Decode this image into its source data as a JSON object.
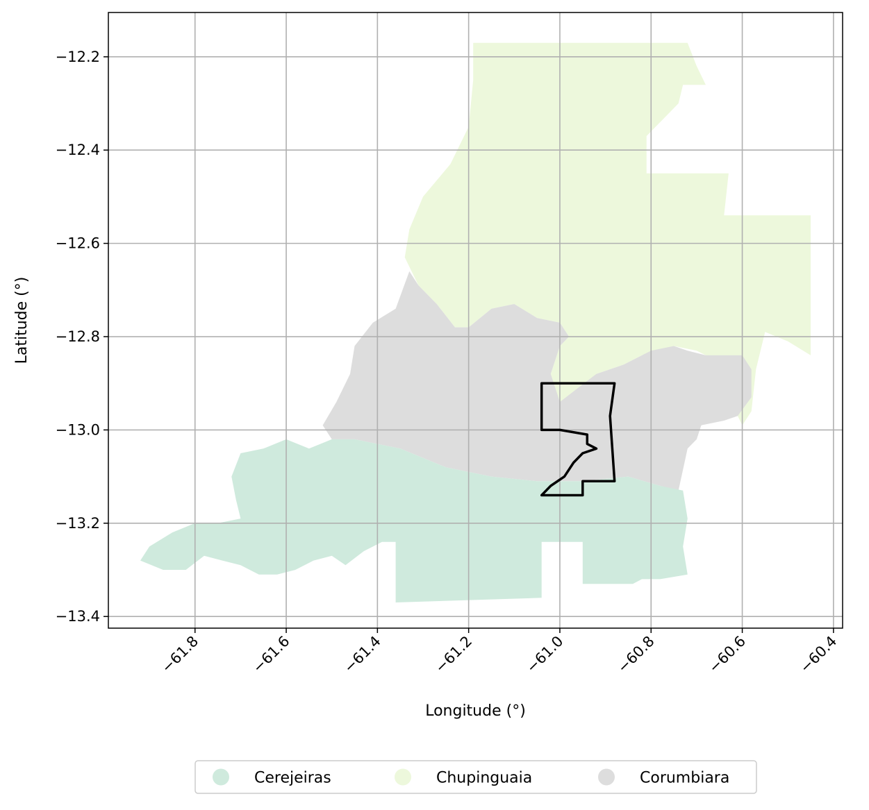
{
  "map": {
    "xlabel": "Longitude (°)",
    "ylabel": "Latitude (°)",
    "xlim": [
      -61.99,
      -60.38
    ],
    "ylim": [
      -13.425,
      -12.105
    ],
    "x_ticks": [
      {
        "value": -61.8,
        "label": "−61.8"
      },
      {
        "value": -61.6,
        "label": "−61.6"
      },
      {
        "value": -61.4,
        "label": "−61.4"
      },
      {
        "value": -61.2,
        "label": "−61.2"
      },
      {
        "value": -61.0,
        "label": "−61.0"
      },
      {
        "value": -60.8,
        "label": "−60.8"
      },
      {
        "value": -60.6,
        "label": "−60.6"
      },
      {
        "value": -60.4,
        "label": "−60.4"
      }
    ],
    "y_ticks": [
      {
        "value": -12.2,
        "label": "−12.2"
      },
      {
        "value": -12.4,
        "label": "−12.4"
      },
      {
        "value": -12.6,
        "label": "−12.6"
      },
      {
        "value": -12.8,
        "label": "−12.8"
      },
      {
        "value": -13.0,
        "label": "−13.0"
      },
      {
        "value": -13.2,
        "label": "−13.2"
      },
      {
        "value": -13.4,
        "label": "−13.4"
      }
    ],
    "grid": true,
    "legend_position": "bottom-center",
    "legend": [
      {
        "label": "Cerejeiras",
        "color": "#cfeadd"
      },
      {
        "label": "Chupinguaia",
        "color": "#edf8dc"
      },
      {
        "label": "Corumbiara",
        "color": "#dddddd"
      }
    ],
    "regions": [
      {
        "name": "Chupinguaia",
        "color": "#edf8dc",
        "coords": [
          [
            -61.19,
            -12.17
          ],
          [
            -60.98,
            -12.17
          ],
          [
            -60.75,
            -12.17
          ],
          [
            -60.72,
            -12.17
          ],
          [
            -60.7,
            -12.22
          ],
          [
            -60.68,
            -12.26
          ],
          [
            -60.73,
            -12.26
          ],
          [
            -60.74,
            -12.3
          ],
          [
            -60.77,
            -12.33
          ],
          [
            -60.79,
            -12.35
          ],
          [
            -60.81,
            -12.37
          ],
          [
            -60.81,
            -12.45
          ],
          [
            -60.63,
            -12.45
          ],
          [
            -60.64,
            -12.54
          ],
          [
            -60.45,
            -12.54
          ],
          [
            -60.45,
            -12.84
          ],
          [
            -60.5,
            -12.81
          ],
          [
            -60.55,
            -12.79
          ],
          [
            -60.57,
            -12.87
          ],
          [
            -60.58,
            -12.96
          ],
          [
            -60.6,
            -12.99
          ],
          [
            -60.61,
            -12.97
          ],
          [
            -60.63,
            -12.96
          ],
          [
            -60.65,
            -12.9
          ],
          [
            -60.66,
            -12.85
          ],
          [
            -60.7,
            -12.83
          ],
          [
            -60.75,
            -12.82
          ],
          [
            -60.78,
            -12.83
          ],
          [
            -60.82,
            -12.84
          ],
          [
            -60.86,
            -12.86
          ],
          [
            -60.92,
            -12.88
          ],
          [
            -60.94,
            -12.93
          ],
          [
            -60.97,
            -12.95
          ],
          [
            -61.0,
            -12.97
          ],
          [
            -61.02,
            -12.88
          ],
          [
            -61.0,
            -12.82
          ],
          [
            -60.98,
            -12.8
          ],
          [
            -61.0,
            -12.77
          ],
          [
            -61.05,
            -12.76
          ],
          [
            -61.1,
            -12.73
          ],
          [
            -61.15,
            -12.74
          ],
          [
            -61.2,
            -12.78
          ],
          [
            -61.23,
            -12.78
          ],
          [
            -61.27,
            -12.73
          ],
          [
            -61.31,
            -12.69
          ],
          [
            -61.34,
            -12.63
          ],
          [
            -61.33,
            -12.57
          ],
          [
            -61.3,
            -12.5
          ],
          [
            -61.24,
            -12.43
          ],
          [
            -61.2,
            -12.35
          ],
          [
            -61.19,
            -12.25
          ]
        ]
      },
      {
        "name": "Corumbiara",
        "color": "#dddddd",
        "coords": [
          [
            -61.36,
            -12.63
          ],
          [
            -61.33,
            -12.66
          ],
          [
            -61.36,
            -12.74
          ],
          [
            -61.41,
            -12.77
          ],
          [
            -61.45,
            -12.82
          ],
          [
            -61.46,
            -12.88
          ],
          [
            -61.49,
            -12.94
          ],
          [
            -61.52,
            -12.99
          ],
          [
            -61.5,
            -13.02
          ],
          [
            -61.45,
            -13.02
          ],
          [
            -61.35,
            -13.04
          ],
          [
            -61.25,
            -13.08
          ],
          [
            -61.15,
            -13.1
          ],
          [
            -61.05,
            -13.11
          ],
          [
            -60.95,
            -13.11
          ],
          [
            -60.85,
            -13.1
          ],
          [
            -60.78,
            -13.12
          ],
          [
            -60.74,
            -13.13
          ],
          [
            -60.72,
            -13.04
          ],
          [
            -60.7,
            -13.02
          ],
          [
            -60.69,
            -12.99
          ],
          [
            -60.64,
            -12.98
          ],
          [
            -60.61,
            -12.97
          ],
          [
            -60.58,
            -12.93
          ],
          [
            -60.58,
            -12.87
          ],
          [
            -60.6,
            -12.84
          ],
          [
            -60.64,
            -12.84
          ],
          [
            -60.68,
            -12.84
          ],
          [
            -60.72,
            -12.83
          ],
          [
            -60.75,
            -12.82
          ],
          [
            -60.8,
            -12.83
          ],
          [
            -60.86,
            -12.86
          ],
          [
            -60.92,
            -12.88
          ],
          [
            -60.96,
            -12.91
          ],
          [
            -61.0,
            -12.94
          ],
          [
            -61.02,
            -12.88
          ],
          [
            -61.0,
            -12.82
          ],
          [
            -60.98,
            -12.8
          ],
          [
            -61.0,
            -12.77
          ],
          [
            -61.05,
            -12.76
          ],
          [
            -61.1,
            -12.73
          ],
          [
            -61.15,
            -12.74
          ],
          [
            -61.2,
            -12.78
          ],
          [
            -61.23,
            -12.78
          ],
          [
            -61.27,
            -12.73
          ],
          [
            -61.31,
            -12.69
          ],
          [
            -61.33,
            -12.66
          ]
        ]
      },
      {
        "name": "Cerejeiras",
        "color": "#cfeadd",
        "coords": [
          [
            -61.5,
            -13.02
          ],
          [
            -61.55,
            -13.04
          ],
          [
            -61.6,
            -13.02
          ],
          [
            -61.65,
            -13.04
          ],
          [
            -61.7,
            -13.05
          ],
          [
            -61.72,
            -13.1
          ],
          [
            -61.71,
            -13.15
          ],
          [
            -61.7,
            -13.19
          ],
          [
            -61.75,
            -13.2
          ],
          [
            -61.8,
            -13.2
          ],
          [
            -61.85,
            -13.22
          ],
          [
            -61.9,
            -13.25
          ],
          [
            -61.92,
            -13.28
          ],
          [
            -61.87,
            -13.3
          ],
          [
            -61.82,
            -13.3
          ],
          [
            -61.78,
            -13.27
          ],
          [
            -61.74,
            -13.28
          ],
          [
            -61.7,
            -13.29
          ],
          [
            -61.66,
            -13.31
          ],
          [
            -61.62,
            -13.31
          ],
          [
            -61.58,
            -13.3
          ],
          [
            -61.54,
            -13.28
          ],
          [
            -61.5,
            -13.27
          ],
          [
            -61.47,
            -13.29
          ],
          [
            -61.43,
            -13.26
          ],
          [
            -61.39,
            -13.24
          ],
          [
            -61.36,
            -13.24
          ],
          [
            -61.36,
            -13.37
          ],
          [
            -61.04,
            -13.36
          ],
          [
            -61.04,
            -13.24
          ],
          [
            -60.95,
            -13.24
          ],
          [
            -60.95,
            -13.33
          ],
          [
            -60.84,
            -13.33
          ],
          [
            -60.82,
            -13.32
          ],
          [
            -60.78,
            -13.32
          ],
          [
            -60.72,
            -13.31
          ],
          [
            -60.73,
            -13.25
          ],
          [
            -60.72,
            -13.19
          ],
          [
            -60.73,
            -13.13
          ],
          [
            -60.78,
            -13.12
          ],
          [
            -60.85,
            -13.1
          ],
          [
            -60.95,
            -13.11
          ],
          [
            -61.05,
            -13.11
          ],
          [
            -61.15,
            -13.1
          ],
          [
            -61.25,
            -13.08
          ],
          [
            -61.35,
            -13.04
          ],
          [
            -61.45,
            -13.02
          ]
        ]
      }
    ],
    "outline": {
      "color": "#000000",
      "coords": [
        [
          -61.04,
          -12.9
        ],
        [
          -60.88,
          -12.9
        ],
        [
          -60.89,
          -12.97
        ],
        [
          -60.88,
          -13.11
        ],
        [
          -60.95,
          -13.11
        ],
        [
          -60.95,
          -13.14
        ],
        [
          -61.04,
          -13.14
        ],
        [
          -61.02,
          -13.12
        ],
        [
          -60.99,
          -13.1
        ],
        [
          -60.97,
          -13.07
        ],
        [
          -60.95,
          -13.05
        ],
        [
          -60.92,
          -13.04
        ],
        [
          -60.94,
          -13.03
        ],
        [
          -60.94,
          -13.01
        ],
        [
          -61.0,
          -13.0
        ],
        [
          -61.0,
          -13.0
        ],
        [
          -61.04,
          -13.0
        ]
      ]
    }
  }
}
